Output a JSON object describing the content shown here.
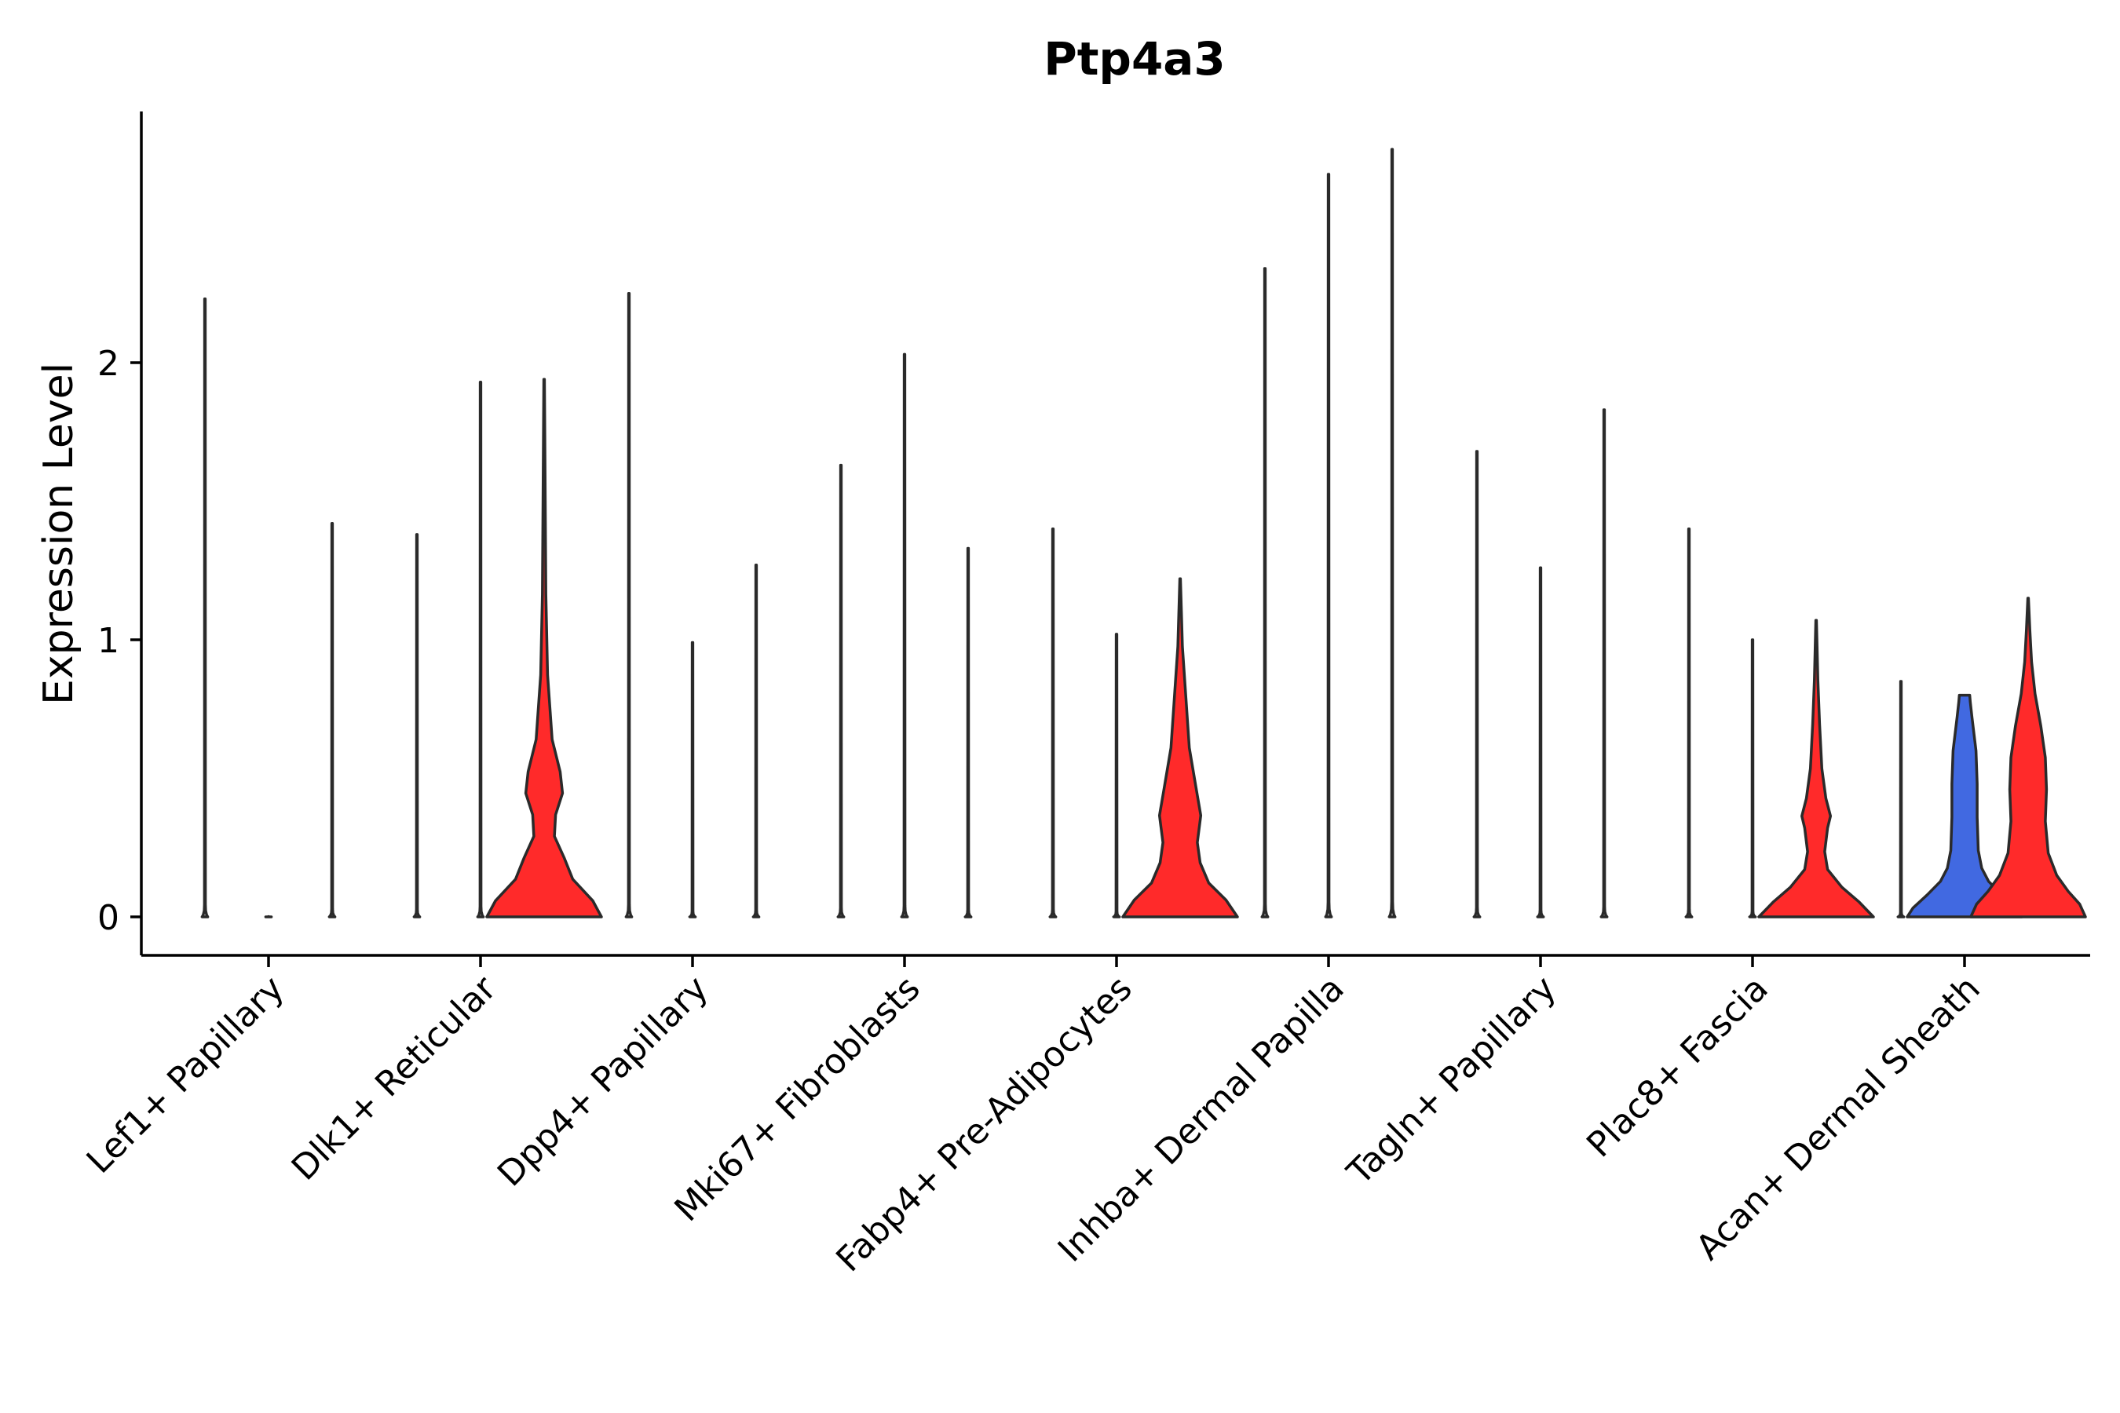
{
  "chart_data": {
    "type": "violin",
    "title": "Ptp4a3",
    "xlabel": "",
    "ylabel": "Expression Level",
    "ylim": [
      -0.14,
      2.9
    ],
    "yticks": [
      0,
      1,
      2
    ],
    "categories": [
      "Lef1+ Papillary",
      "Dlk1+ Reticular",
      "Dpp4+ Papillary",
      "Mki67+ Fibroblasts",
      "Fabp4+ Pre-Adipocytes",
      "Inhba+ Dermal Papilla",
      "Tagln+ Papillary",
      "Plac8+ Fascia",
      "Acan+ Dermal Sheath"
    ],
    "colors": {
      "low": "#ffffff",
      "red": "#ff2a2a",
      "blue": "#4169e1"
    },
    "groups": [
      {
        "category": "Lef1+ Papillary",
        "violins": [
          {
            "max": 2.23,
            "color": "low",
            "shape": "flat"
          },
          {
            "max": 0.0,
            "color": "low",
            "shape": "flat"
          },
          {
            "max": 1.42,
            "color": "low",
            "shape": "flat"
          }
        ]
      },
      {
        "category": "Dlk1+ Reticular",
        "violins": [
          {
            "max": 1.38,
            "color": "low",
            "shape": "flat"
          },
          {
            "max": 1.93,
            "color": "low",
            "shape": "flat"
          },
          {
            "max": 1.94,
            "color": "red",
            "shape": "bimodal_a"
          }
        ]
      },
      {
        "category": "Dpp4+ Papillary",
        "violins": [
          {
            "max": 2.25,
            "color": "low",
            "shape": "flat"
          },
          {
            "max": 0.99,
            "color": "low",
            "shape": "flat"
          },
          {
            "max": 1.27,
            "color": "low",
            "shape": "flat"
          }
        ]
      },
      {
        "category": "Mki67+ Fibroblasts",
        "violins": [
          {
            "max": 1.63,
            "color": "low",
            "shape": "flat"
          },
          {
            "max": 2.03,
            "color": "low",
            "shape": "flat"
          },
          {
            "max": 1.33,
            "color": "low",
            "shape": "flat"
          }
        ]
      },
      {
        "category": "Fabp4+ Pre-Adipocytes",
        "violins": [
          {
            "max": 1.4,
            "color": "low",
            "shape": "flat"
          },
          {
            "max": 1.02,
            "color": "low",
            "shape": "flat"
          },
          {
            "max": 1.22,
            "color": "red",
            "shape": "bimodal_b"
          }
        ]
      },
      {
        "category": "Inhba+ Dermal Papilla",
        "violins": [
          {
            "max": 2.34,
            "color": "low",
            "shape": "flat"
          },
          {
            "max": 2.68,
            "color": "low",
            "shape": "flat"
          },
          {
            "max": 2.77,
            "color": "low",
            "shape": "flat"
          }
        ]
      },
      {
        "category": "Tagln+ Papillary",
        "violins": [
          {
            "max": 1.68,
            "color": "low",
            "shape": "flat"
          },
          {
            "max": 1.26,
            "color": "low",
            "shape": "flat"
          },
          {
            "max": 1.83,
            "color": "low",
            "shape": "flat"
          }
        ]
      },
      {
        "category": "Plac8+ Fascia",
        "violins": [
          {
            "max": 1.4,
            "color": "low",
            "shape": "flat"
          },
          {
            "max": 1.0,
            "color": "low",
            "shape": "flat"
          },
          {
            "max": 1.07,
            "color": "red",
            "shape": "bimodal_c"
          }
        ]
      },
      {
        "category": "Acan+ Dermal Sheath",
        "violins": [
          {
            "max": 0.85,
            "color": "low",
            "shape": "flat"
          },
          {
            "max": 0.8,
            "color": "blue",
            "shape": "wide"
          },
          {
            "max": 1.15,
            "color": "red",
            "shape": "wide_tail"
          }
        ]
      }
    ]
  }
}
